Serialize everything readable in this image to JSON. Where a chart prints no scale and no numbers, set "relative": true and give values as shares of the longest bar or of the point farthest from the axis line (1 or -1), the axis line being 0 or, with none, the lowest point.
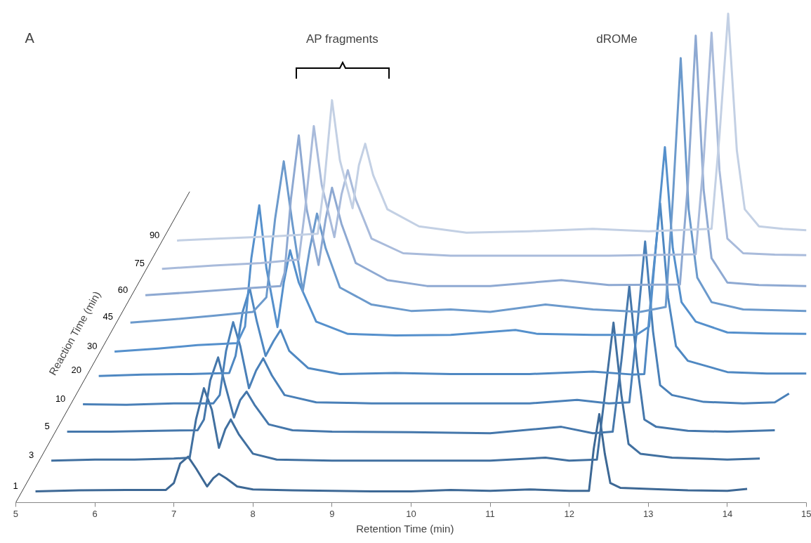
{
  "chart_data": {
    "type": "line",
    "relative": true,
    "title": "A",
    "xlabel": "Retention Time (min)",
    "ylabel": "Reaction Time (min)",
    "xlim": [
      5,
      15
    ],
    "xticks": [
      5,
      6,
      7,
      8,
      9,
      10,
      11,
      12,
      13,
      14,
      15
    ],
    "line_style": "solid",
    "annotations": [
      "AP fragments",
      "dROMe"
    ],
    "series": [
      {
        "name": "1",
        "color": "#3d6895",
        "x": [
          5.25,
          5.8,
          6.4,
          6.9,
          7.0,
          7.08,
          7.18,
          7.28,
          7.42,
          7.5,
          7.57,
          7.66,
          7.8,
          8.0,
          8.5,
          9.0,
          9.5,
          10.0,
          10.5,
          11.0,
          11.5,
          12.0,
          12.25,
          12.31,
          12.38,
          12.45,
          12.52,
          12.65,
          13.0,
          13.5,
          14.0,
          14.25
        ],
        "values": [
          0.023,
          0.025,
          0.026,
          0.026,
          0.04,
          0.08,
          0.094,
          0.07,
          0.033,
          0.05,
          0.059,
          0.05,
          0.033,
          0.027,
          0.025,
          0.024,
          0.023,
          0.023,
          0.026,
          0.024,
          0.027,
          0.024,
          0.024,
          0.11,
          0.181,
          0.1,
          0.04,
          0.03,
          0.028,
          0.025,
          0.024,
          0.028
        ]
      },
      {
        "name": "3",
        "color": "#4170a0",
        "x": [
          5.45,
          6.0,
          6.5,
          7.0,
          7.2,
          7.28,
          7.38,
          7.48,
          7.57,
          7.65,
          7.72,
          7.82,
          8.0,
          8.3,
          9.0,
          10.0,
          11.0,
          11.7,
          12.0,
          12.35,
          12.45,
          12.56,
          12.66,
          12.75,
          12.9,
          13.3,
          14.0,
          14.41
        ],
        "values": [
          0.086,
          0.088,
          0.088,
          0.09,
          0.092,
          0.17,
          0.234,
          0.19,
          0.112,
          0.15,
          0.17,
          0.14,
          0.1,
          0.088,
          0.086,
          0.086,
          0.086,
          0.092,
          0.086,
          0.088,
          0.22,
          0.368,
          0.22,
          0.12,
          0.1,
          0.092,
          0.088,
          0.09
        ]
      },
      {
        "name": "5",
        "color": "#4577ab",
        "x": [
          5.65,
          6.2,
          6.8,
          7.3,
          7.38,
          7.46,
          7.56,
          7.65,
          7.76,
          7.84,
          7.92,
          8.02,
          8.2,
          8.5,
          9.0,
          10.0,
          11.0,
          11.9,
          12.3,
          12.55,
          12.66,
          12.76,
          12.86,
          12.95,
          13.1,
          13.5,
          14.0,
          14.6
        ],
        "values": [
          0.145,
          0.145,
          0.147,
          0.148,
          0.17,
          0.25,
          0.297,
          0.24,
          0.174,
          0.21,
          0.227,
          0.2,
          0.16,
          0.148,
          0.145,
          0.144,
          0.142,
          0.155,
          0.142,
          0.145,
          0.29,
          0.443,
          0.28,
          0.17,
          0.155,
          0.147,
          0.145,
          0.148
        ]
      },
      {
        "name": "10",
        "color": "#4a80b8",
        "x": [
          5.85,
          6.4,
          7.0,
          7.5,
          7.58,
          7.66,
          7.75,
          7.84,
          7.95,
          8.04,
          8.13,
          8.24,
          8.4,
          8.8,
          9.5,
          10.5,
          11.5,
          12.1,
          12.5,
          12.76,
          12.86,
          12.96,
          13.06,
          13.15,
          13.3,
          13.7,
          14.2,
          14.6,
          14.78
        ],
        "values": [
          0.201,
          0.2,
          0.203,
          0.203,
          0.22,
          0.31,
          0.369,
          0.32,
          0.234,
          0.27,
          0.295,
          0.26,
          0.22,
          0.205,
          0.203,
          0.203,
          0.203,
          0.21,
          0.203,
          0.205,
          0.36,
          0.534,
          0.35,
          0.24,
          0.22,
          0.206,
          0.203,
          0.205,
          0.223
        ]
      },
      {
        "name": "20",
        "color": "#4f88c2",
        "x": [
          6.05,
          6.6,
          7.2,
          7.7,
          7.78,
          7.87,
          7.96,
          8.05,
          8.16,
          8.26,
          8.35,
          8.46,
          8.7,
          9.1,
          9.8,
          10.5,
          11.5,
          12.3,
          12.8,
          12.95,
          13.05,
          13.15,
          13.25,
          13.35,
          13.5,
          14.0,
          14.5,
          15.0
        ],
        "values": [
          0.259,
          0.262,
          0.263,
          0.265,
          0.3,
          0.39,
          0.438,
          0.37,
          0.3,
          0.33,
          0.353,
          0.31,
          0.275,
          0.263,
          0.265,
          0.263,
          0.263,
          0.268,
          0.262,
          0.263,
          0.45,
          0.612,
          0.42,
          0.32,
          0.29,
          0.267,
          0.264,
          0.264
        ]
      },
      {
        "name": "30",
        "color": "#5590cc",
        "x": [
          6.25,
          6.8,
          7.3,
          7.8,
          7.9,
          7.98,
          8.08,
          8.17,
          8.31,
          8.39,
          8.47,
          8.58,
          8.8,
          9.2,
          9.8,
          10.5,
          11.32,
          11.6,
          12.3,
          12.85,
          13.01,
          13.11,
          13.21,
          13.31,
          13.42,
          13.6,
          14.0,
          14.5,
          15.0
        ],
        "values": [
          0.309,
          0.315,
          0.322,
          0.326,
          0.36,
          0.5,
          0.608,
          0.48,
          0.359,
          0.45,
          0.516,
          0.45,
          0.37,
          0.345,
          0.342,
          0.343,
          0.353,
          0.345,
          0.343,
          0.343,
          0.36,
          0.55,
          0.727,
          0.52,
          0.41,
          0.37,
          0.348,
          0.346,
          0.345
        ]
      },
      {
        "name": "45",
        "color": "#6c9acc",
        "x": [
          6.45,
          7.0,
          7.5,
          8.0,
          8.17,
          8.28,
          8.39,
          8.5,
          8.63,
          8.72,
          8.81,
          8.92,
          9.1,
          9.5,
          10.0,
          10.5,
          11.0,
          11.7,
          12.3,
          12.9,
          13.22,
          13.31,
          13.41,
          13.51,
          13.62,
          13.8,
          14.2,
          15.0
        ],
        "values": [
          0.368,
          0.375,
          0.382,
          0.39,
          0.42,
          0.58,
          0.698,
          0.57,
          0.432,
          0.52,
          0.591,
          0.52,
          0.44,
          0.405,
          0.392,
          0.395,
          0.39,
          0.405,
          0.395,
          0.39,
          0.4,
          0.62,
          0.909,
          0.6,
          0.46,
          0.41,
          0.395,
          0.392
        ]
      },
      {
        "name": "60",
        "color": "#8ea9d2",
        "x": [
          6.64,
          7.2,
          7.8,
          8.35,
          8.4,
          8.48,
          8.58,
          8.68,
          8.83,
          8.92,
          9.0,
          9.12,
          9.3,
          9.7,
          10.2,
          11.0,
          11.9,
          12.5,
          13.4,
          13.5,
          13.6,
          13.7,
          13.8,
          14.0,
          14.4,
          15.0
        ],
        "values": [
          0.424,
          0.43,
          0.437,
          0.443,
          0.47,
          0.62,
          0.751,
          0.6,
          0.486,
          0.58,
          0.644,
          0.57,
          0.49,
          0.455,
          0.443,
          0.443,
          0.455,
          0.445,
          0.446,
          0.65,
          0.955,
          0.64,
          0.5,
          0.45,
          0.445,
          0.443
        ]
      },
      {
        "name": "75",
        "color": "#a9bbdb",
        "x": [
          6.85,
          7.5,
          8.1,
          8.58,
          8.66,
          8.77,
          8.87,
          9.03,
          9.12,
          9.2,
          9.3,
          9.5,
          9.9,
          10.5,
          11.5,
          12.5,
          13.6,
          13.7,
          13.8,
          13.9,
          14.0,
          14.2,
          14.6,
          15.0
        ],
        "values": [
          0.478,
          0.485,
          0.49,
          0.497,
          0.6,
          0.77,
          0.65,
          0.543,
          0.63,
          0.68,
          0.62,
          0.54,
          0.51,
          0.505,
          0.505,
          0.505,
          0.508,
          0.7,
          0.961,
          0.68,
          0.54,
          0.51,
          0.507,
          0.506
        ]
      },
      {
        "name": "90",
        "color": "#c3d0e4",
        "x": [
          7.04,
          7.6,
          8.3,
          8.82,
          8.9,
          9.0,
          9.1,
          9.26,
          9.34,
          9.42,
          9.52,
          9.7,
          10.1,
          10.7,
          11.5,
          12.3,
          13.0,
          13.8,
          13.9,
          14.01,
          14.12,
          14.22,
          14.4,
          14.7,
          15.0
        ],
        "values": [
          0.536,
          0.54,
          0.545,
          0.55,
          0.65,
          0.823,
          0.7,
          0.602,
          0.69,
          0.734,
          0.67,
          0.6,
          0.565,
          0.552,
          0.555,
          0.56,
          0.555,
          0.56,
          0.75,
          1.0,
          0.72,
          0.6,
          0.565,
          0.56,
          0.557
        ]
      }
    ]
  }
}
